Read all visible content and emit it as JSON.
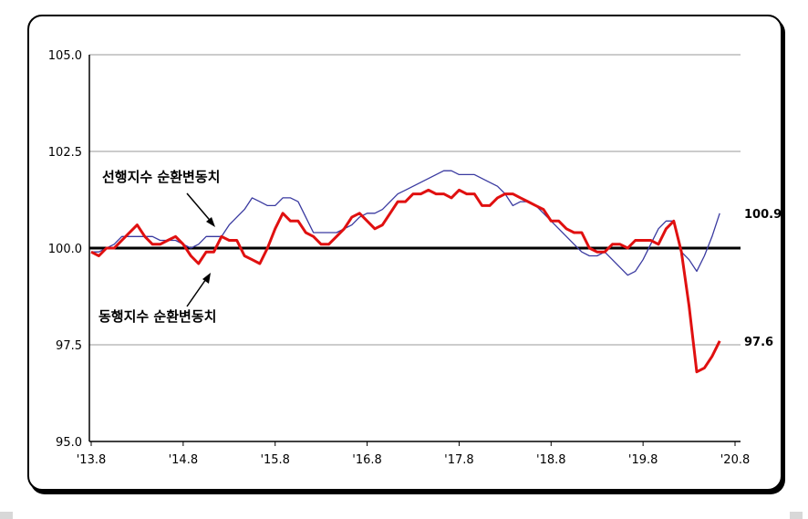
{
  "chart_data": {
    "type": "line",
    "ylim": [
      95.0,
      105.0
    ],
    "yticks": [
      "95.0",
      "97.5",
      "100.0",
      "102.5",
      "105.0"
    ],
    "xticks": [
      "'13.8",
      "'14.8",
      "'15.8",
      "'16.8",
      "'17.8",
      "'18.8",
      "'19.8",
      "'20.8"
    ],
    "xticks_at": [
      0,
      12,
      24,
      36,
      48,
      60,
      72,
      84
    ],
    "x_count": 85,
    "grid": "horizontal",
    "baseline": 100.0,
    "series": [
      {
        "name": "선행지수 순환변동치",
        "color": "#3a3aa0",
        "end_label": "100.9",
        "values": [
          99.9,
          99.9,
          100.0,
          100.1,
          100.3,
          100.3,
          100.3,
          100.3,
          100.3,
          100.2,
          100.2,
          100.2,
          100.1,
          100.0,
          100.1,
          100.3,
          100.3,
          100.3,
          100.6,
          100.8,
          101.0,
          101.3,
          101.2,
          101.1,
          101.1,
          101.3,
          101.3,
          101.2,
          100.8,
          100.4,
          100.4,
          100.4,
          100.4,
          100.5,
          100.6,
          100.8,
          100.9,
          100.9,
          101.0,
          101.2,
          101.4,
          101.5,
          101.6,
          101.7,
          101.8,
          101.9,
          102.0,
          102.0,
          101.9,
          101.9,
          101.9,
          101.8,
          101.7,
          101.6,
          101.4,
          101.1,
          101.2,
          101.2,
          101.1,
          100.9,
          100.7,
          100.5,
          100.3,
          100.1,
          99.9,
          99.8,
          99.8,
          99.9,
          99.7,
          99.5,
          99.3,
          99.4,
          99.7,
          100.1,
          100.5,
          100.7,
          100.7,
          99.9,
          99.7,
          99.4,
          99.8,
          100.3,
          100.9
        ]
      },
      {
        "name": "동행지수 순환변동치",
        "color": "#e01010",
        "end_label": "97.6",
        "values": [
          99.9,
          99.8,
          100.0,
          100.0,
          100.2,
          100.4,
          100.6,
          100.3,
          100.1,
          100.1,
          100.2,
          100.3,
          100.1,
          99.8,
          99.6,
          99.9,
          99.9,
          100.3,
          100.2,
          100.2,
          99.8,
          99.7,
          99.6,
          100.0,
          100.5,
          100.9,
          100.7,
          100.7,
          100.4,
          100.3,
          100.1,
          100.1,
          100.3,
          100.5,
          100.8,
          100.9,
          100.7,
          100.5,
          100.6,
          100.9,
          101.2,
          101.2,
          101.4,
          101.4,
          101.5,
          101.4,
          101.4,
          101.3,
          101.5,
          101.4,
          101.4,
          101.1,
          101.1,
          101.3,
          101.4,
          101.4,
          101.3,
          101.2,
          101.1,
          101.0,
          100.7,
          100.7,
          100.5,
          100.4,
          100.4,
          100.0,
          99.9,
          99.9,
          100.1,
          100.1,
          100.0,
          100.2,
          100.2,
          100.2,
          100.1,
          100.5,
          100.7,
          99.9,
          98.5,
          96.8,
          96.9,
          97.2,
          97.6
        ]
      }
    ],
    "annotations": [
      {
        "text": "선행지수 순환변동치",
        "arrow_to_series": 0
      },
      {
        "text": "동행지수 순환변동치",
        "arrow_to_series": 1
      }
    ]
  }
}
